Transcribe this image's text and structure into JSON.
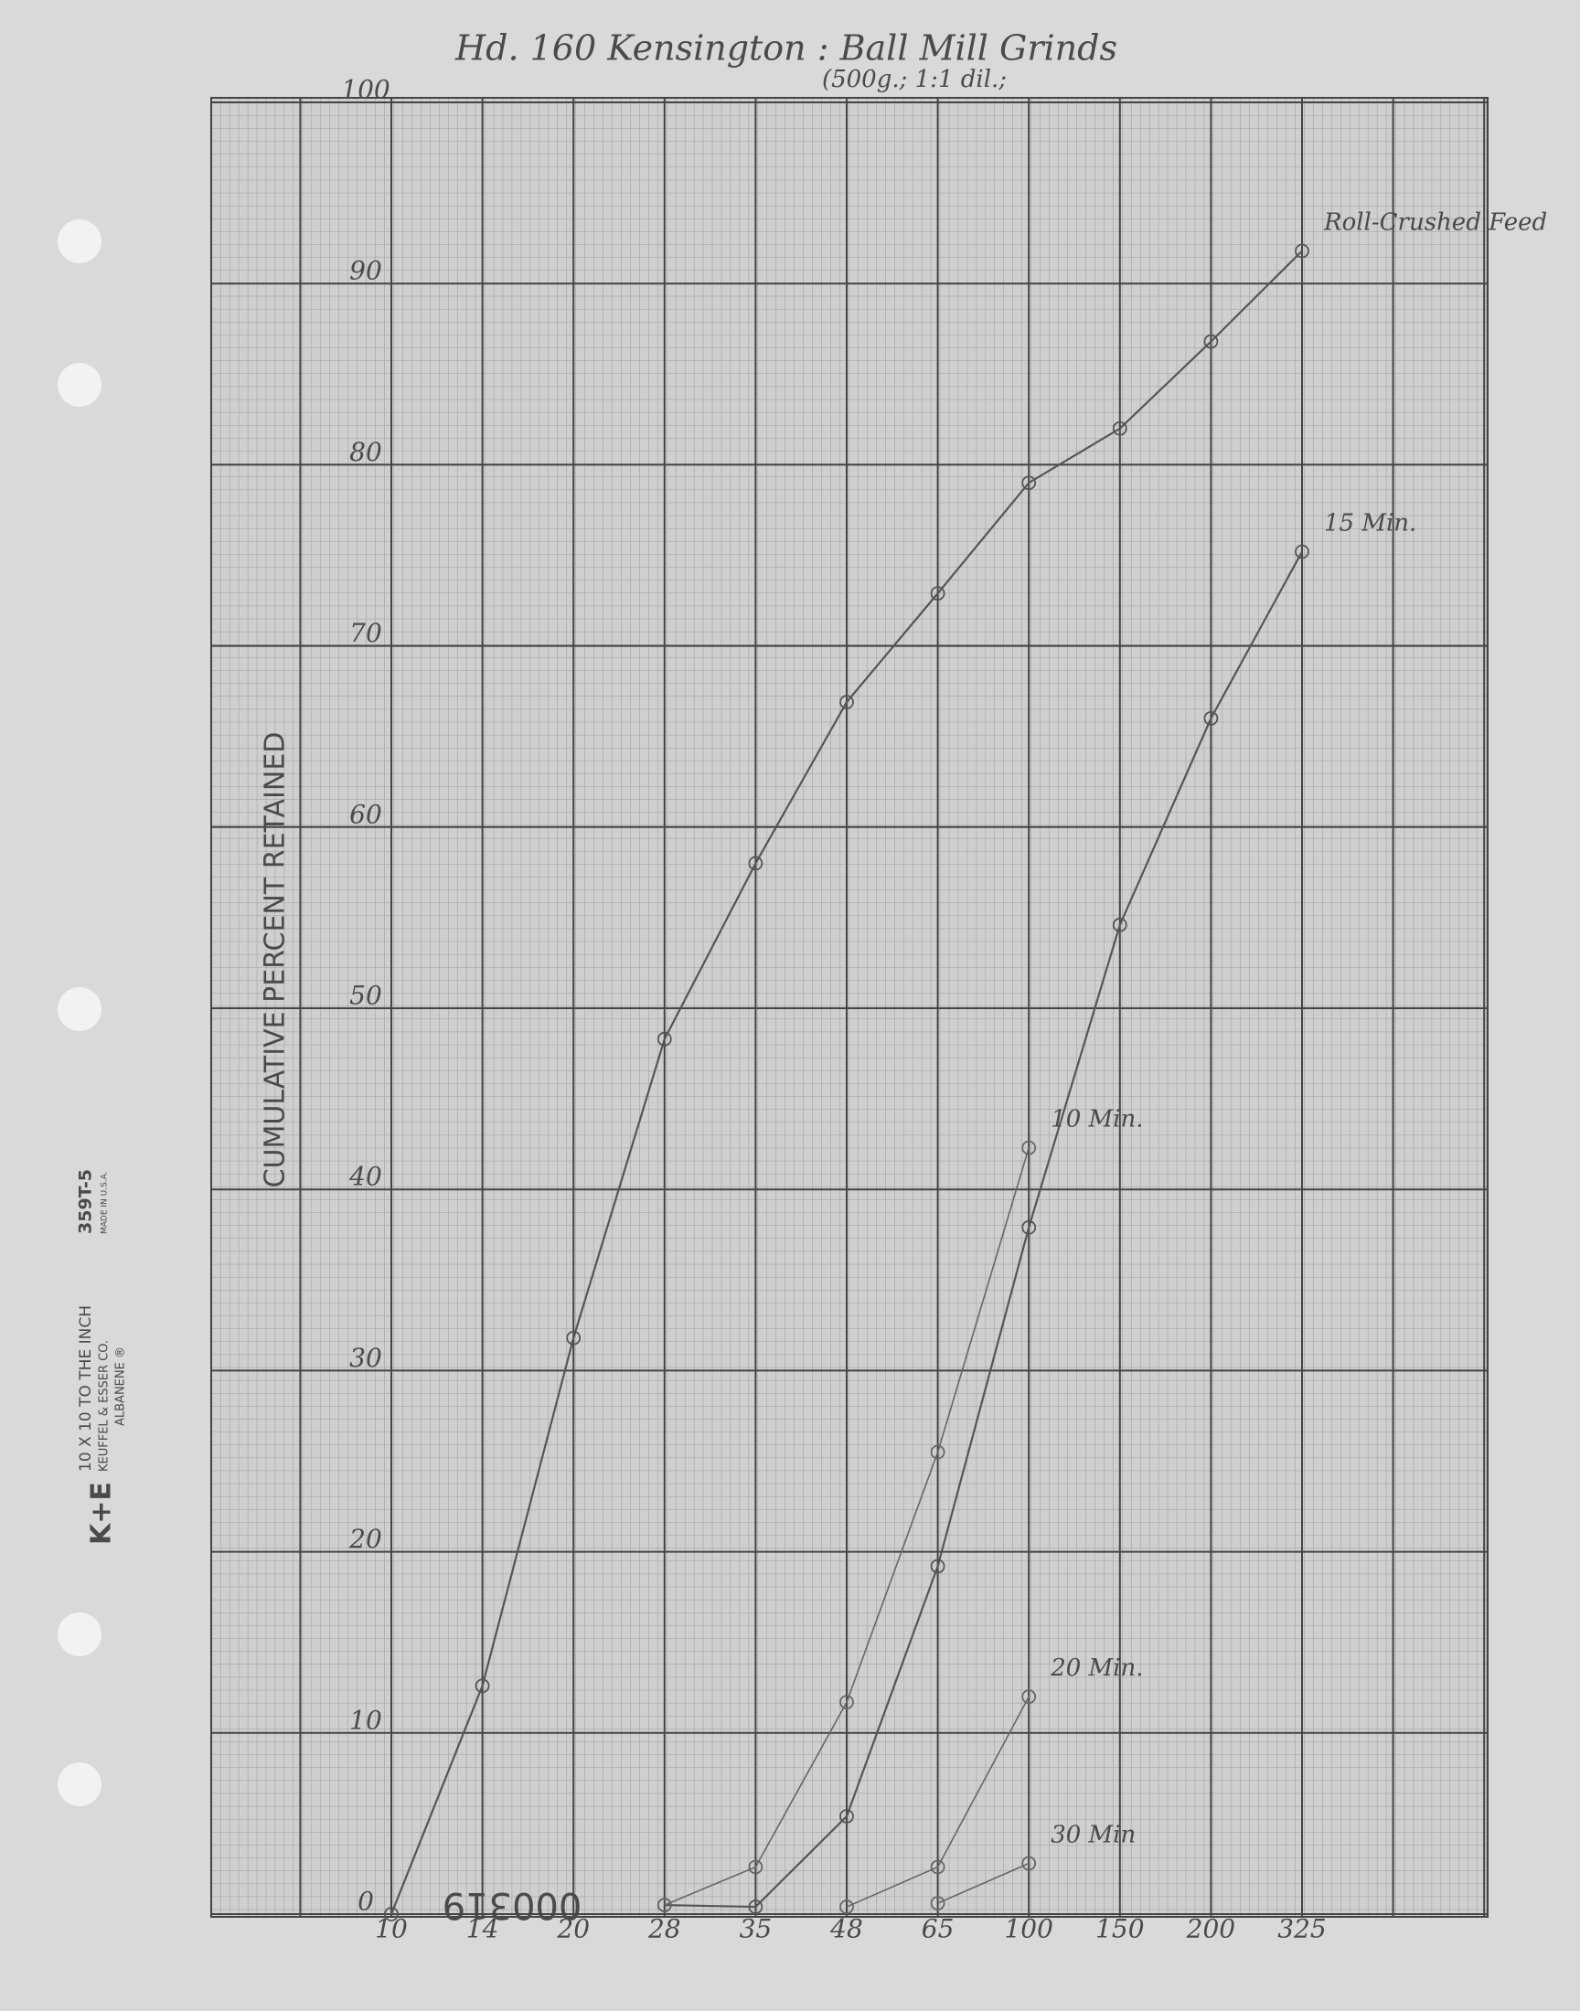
{
  "chart_data": {
    "type": "line",
    "title": "Hd. 160 Kensington : Ball Mill Grinds",
    "subtitle": "(500g.; 1:1 dil.;",
    "y_label": "CUMULATIVE PERCENT RETAINED",
    "categories": [
      "10",
      "14",
      "20",
      "28",
      "35",
      "48",
      "65",
      "100",
      "150",
      "200",
      "325"
    ],
    "series": [
      {
        "name": "Roll-Crushed Feed",
        "color": "#555555",
        "values": [
          0,
          12.6,
          31.8,
          48.3,
          58.0,
          66.9,
          72.9,
          79.0,
          82.0,
          86.8,
          91.8
        ]
      },
      {
        "name": "15 Min.",
        "color": "#555555",
        "values": [
          null,
          null,
          null,
          0.5,
          0.4,
          5.4,
          19.2,
          37.9,
          54.6,
          66.0,
          75.2
        ]
      },
      {
        "name": "10 Min.",
        "color": "#666666",
        "values": [
          null,
          null,
          null,
          0.5,
          2.6,
          11.7,
          25.5,
          42.3,
          null,
          null,
          null
        ]
      },
      {
        "name": "20 Min.",
        "color": "#666666",
        "values": [
          null,
          null,
          null,
          null,
          null,
          0.4,
          2.6,
          12.0,
          null,
          null,
          null
        ]
      },
      {
        "name": "30 Min",
        "color": "#666666",
        "values": [
          null,
          null,
          null,
          null,
          null,
          null,
          0.6,
          2.8,
          null,
          null,
          null
        ]
      }
    ],
    "ylim": [
      0,
      100
    ],
    "yticks": [
      0,
      10,
      20,
      30,
      40,
      50,
      60,
      70,
      80,
      90,
      100
    ],
    "grid": true
  },
  "paper_print": {
    "brand": "K+E",
    "line1": "10 X 10 TO THE INCH",
    "line2": "KEUFFEL & ESSER CO.",
    "line3": "ALBANENE ®",
    "code": "359T-5",
    "origin": "MADE IN U.S.A."
  },
  "stamp": "000319"
}
